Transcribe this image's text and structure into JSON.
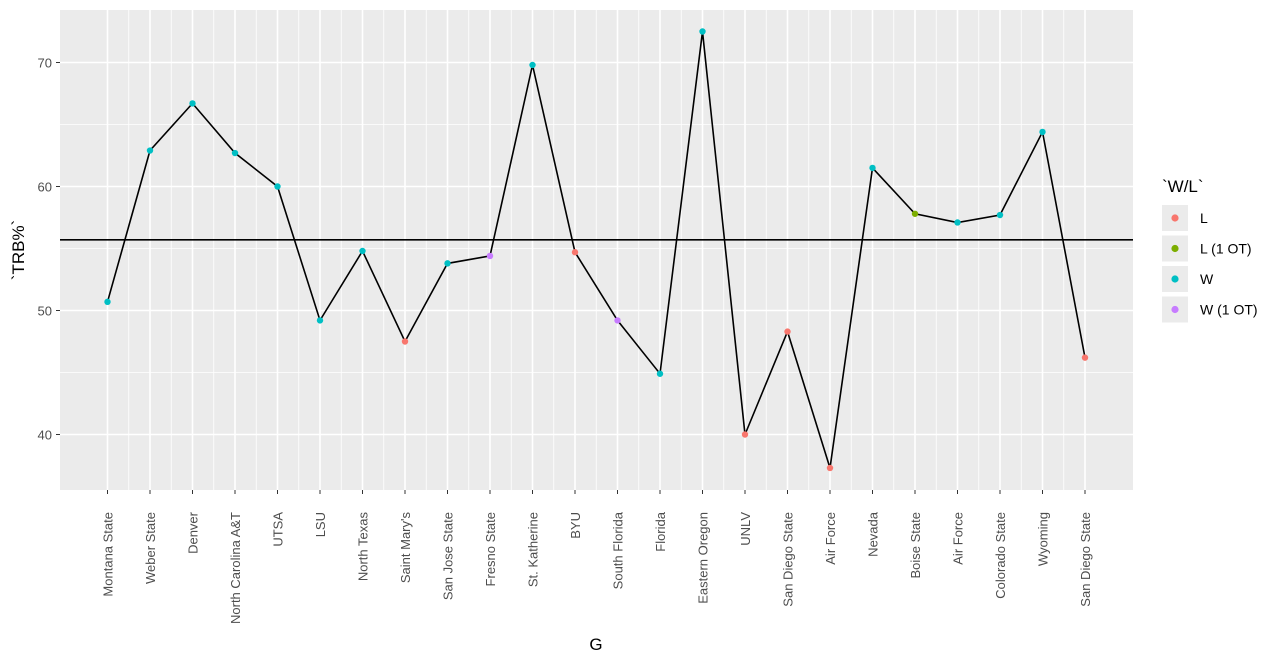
{
  "chart_data": {
    "type": "line",
    "xlabel": "G",
    "ylabel": "`TRB%`",
    "categories": [
      "Montana State",
      "Weber State",
      "Denver",
      "North Carolina A&T",
      "UTSA",
      "LSU",
      "North Texas",
      "Saint Mary's",
      "San Jose State",
      "Fresno State",
      "St. Katherine",
      "BYU",
      "South Florida",
      "Florida",
      "Eastern Oregon",
      "UNLV",
      "San Diego State",
      "Air Force",
      "Nevada",
      "Boise State",
      "Air Force",
      "Colorado State",
      "Wyoming",
      "San Diego State"
    ],
    "values": [
      50.7,
      62.9,
      66.7,
      62.7,
      60.0,
      49.2,
      54.8,
      47.5,
      53.8,
      54.4,
      69.8,
      54.7,
      49.2,
      44.9,
      72.5,
      40.0,
      48.3,
      37.3,
      61.5,
      57.8,
      57.1,
      57.7,
      64.4,
      46.2
    ],
    "wl": [
      "W",
      "W",
      "W",
      "W",
      "W",
      "W",
      "W",
      "L",
      "W",
      "W (1 OT)",
      "W",
      "L",
      "W (1 OT)",
      "W",
      "W",
      "L",
      "L",
      "L",
      "W",
      "L (1 OT)",
      "W",
      "W",
      "W",
      "L"
    ],
    "hline": 55.7,
    "ylim": [
      35,
      75
    ],
    "yticks": [
      40,
      50,
      60,
      70
    ],
    "grid": true,
    "legend": {
      "title": "`W/L`",
      "position": "right",
      "entries": [
        {
          "label": "L",
          "color": "#F8766D"
        },
        {
          "label": "L (1 OT)",
          "color": "#7CAE00"
        },
        {
          "label": "W",
          "color": "#00BFC4"
        },
        {
          "label": "W (1 OT)",
          "color": "#C77CFF"
        }
      ]
    }
  }
}
